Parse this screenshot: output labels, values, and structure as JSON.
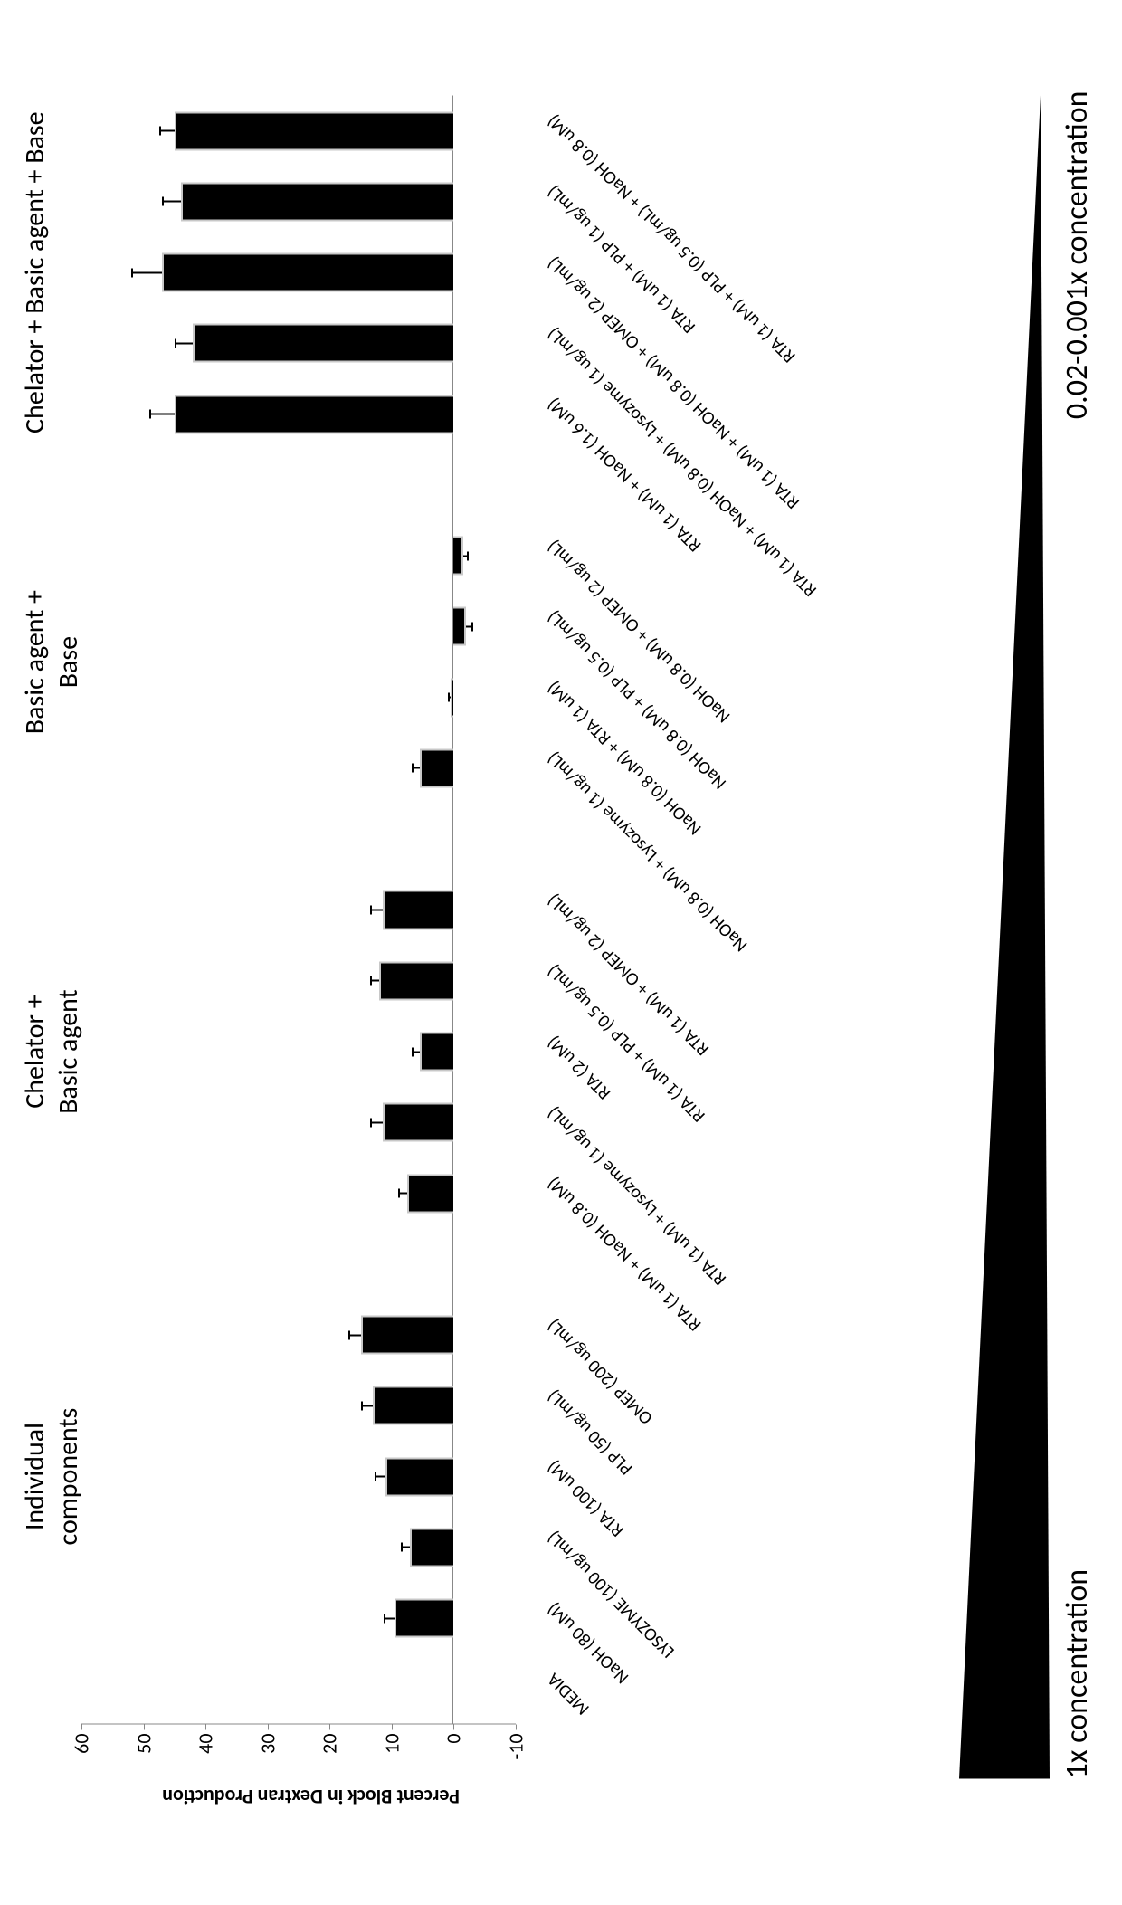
{
  "chart": {
    "type": "bar",
    "ylabel": "Percent Block in Dextran Production",
    "ylabel_fontsize": 22,
    "ylim_low": -10,
    "ylim_high": 60,
    "ytick_step": 10,
    "bar_color": "#000000",
    "bar_border_color": "#c8c8c8",
    "error_bar_color": "#000000",
    "axis_color": "#888888",
    "background_color": "#ffffff",
    "bar_rel_width": 0.55,
    "err_cap_width": 10,
    "categories": [
      {
        "label": "MEDIA",
        "value": 0,
        "err": 0,
        "group": 0
      },
      {
        "label": "NaOH (80 uM)",
        "value": 9.5,
        "err": 1.8,
        "group": 0
      },
      {
        "label": "LYSOZYME (100 ug/mL)",
        "value": 7,
        "err": 1.5,
        "group": 0
      },
      {
        "label": "RTA (100 uM)",
        "value": 11,
        "err": 1.8,
        "group": 0
      },
      {
        "label": "PLP (50 ug/mL)",
        "value": 13,
        "err": 2,
        "group": 0
      },
      {
        "label": "OMEP (200 ug/mL)",
        "value": 15,
        "err": 2,
        "group": 0
      },
      {
        "label": "RTA (1 uM) + NaOH (0.8 uM)",
        "value": 7.5,
        "err": 1.5,
        "group": 1
      },
      {
        "label": "RTA (1 uM) + Lysozyme (1 ug/mL)",
        "value": 11.5,
        "err": 2,
        "group": 1
      },
      {
        "label": "RTA (2 uM)",
        "value": 5.5,
        "err": 1.3,
        "group": 1
      },
      {
        "label": "RTA (1 uM) + PLP (0.5 ug/mL)",
        "value": 12,
        "err": 1.5,
        "group": 1
      },
      {
        "label": "RTA (1 uM) + OMEP (2 ug/mL)",
        "value": 11.5,
        "err": 2,
        "group": 1
      },
      {
        "label": "NaOH (0.8 uM) + Lysozyme (1 ug/mL)",
        "value": 5.5,
        "err": 1.3,
        "group": 2
      },
      {
        "label": "NaOH (0.8 uM) + RTA (1 uM)",
        "value": 0.5,
        "err": 0.5,
        "group": 2
      },
      {
        "label": "NaOH (0.8 uM) + PLP (0.5 ug/mL)",
        "value": -2,
        "err": 0.8,
        "group": 2
      },
      {
        "label": "NaOH (0.8 uM) + OMEP (2 ug/mL)",
        "value": -1.5,
        "err": 0.6,
        "group": 2
      },
      {
        "label": "RTA (1 uM) + NaOH (1.6 uM)",
        "value": 45,
        "err": 4,
        "group": 3
      },
      {
        "label": "RTA (1 uM) +  NaOH (0.8 uM) + Lysozyme (1 ug/mL)",
        "value": 42,
        "err": 3,
        "group": 3
      },
      {
        "label": "RTA (1 uM) + NaOH (0.8 uM) + OMEP (2 ug/mL)",
        "value": 47,
        "err": 5,
        "group": 3
      },
      {
        "label": "RTA (1 uM) + PLP (1 ug/mL)",
        "value": 44,
        "err": 3,
        "group": 3
      },
      {
        "label": "RTA (1 uM) + PLP (0.5 ug/mL) + NaOH (0.8 uM)",
        "value": 45,
        "err": 2.5,
        "group": 3
      }
    ],
    "group_breaks": [
      5,
      10,
      14
    ],
    "group_labels": [
      {
        "text_line1": "Individual",
        "text_line2": "components",
        "start": 1,
        "end": 5
      },
      {
        "text_line1": "Chelator +",
        "text_line2": "Basic agent",
        "start": 6,
        "end": 10
      },
      {
        "text_line1": "Basic agent +",
        "text_line2": "Base",
        "start": 11,
        "end": 14
      },
      {
        "text_line1": "Chelator + Basic agent + Base",
        "text_line2": "",
        "start": 15,
        "end": 19
      }
    ],
    "group_label_fontsize": 30
  },
  "concentration": {
    "left_label": "1x concentration",
    "right_label": "0.02-0.001x concentration",
    "triangle_color": "#000000",
    "label_fontsize": 34
  }
}
